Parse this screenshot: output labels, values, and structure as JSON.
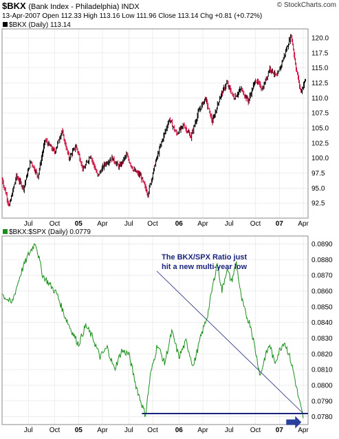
{
  "header": {
    "symbol": "$BKX",
    "description": "(Bank Index - Philadelphia)  INDX",
    "brand": "© StockCharts.com",
    "quote": "13-Apr-2007    Open 112.33  High 113.16  Low 111.96  Close 113.14  Chg +0.81 (+0.72%)"
  },
  "legends": {
    "price": "$BKX (Daily) 113.14",
    "ratio": "$BKX:$SPX (Daily) 0.0779"
  },
  "annotation": {
    "line1": "The BKX/SPX Ratio just",
    "line2": "hit a new multi-year low"
  },
  "colors": {
    "price_up": "#000000",
    "price_down": "#cc0033",
    "ratio_line": "#1a8f1a",
    "annotation": "#1a237e",
    "arrow": "#2a3f9e",
    "grid": "#c8c8c8"
  },
  "chart_data": [
    {
      "type": "line",
      "title": "$BKX (Daily) 113.14",
      "ylim": [
        90,
        121.5
      ],
      "yticks": [
        92.5,
        95.0,
        97.5,
        100.0,
        102.5,
        105.0,
        107.5,
        110.0,
        112.5,
        115.0,
        117.5,
        120.0
      ],
      "xticks": [
        "Jul",
        "Oct",
        "05",
        "Apr",
        "Jul",
        "Oct",
        "06",
        "Apr",
        "Jul",
        "Oct",
        "07",
        "Apr"
      ],
      "grid": true,
      "series": [
        {
          "values": [
            [
              0,
              96.5
            ],
            [
              3,
              92.0
            ],
            [
              6,
              97.0
            ],
            [
              9,
              95.0
            ],
            [
              12,
              99.5
            ],
            [
              15,
              97.0
            ],
            [
              18,
              103.0
            ],
            [
              22,
              101.0
            ],
            [
              25,
              104.5
            ],
            [
              28,
              100.0
            ],
            [
              31,
              102.0
            ],
            [
              34,
              98.0
            ],
            [
              37,
              100.5
            ],
            [
              40,
              97.0
            ],
            [
              43,
              99.0
            ],
            [
              46,
              100.0
            ],
            [
              49,
              98.5
            ],
            [
              52,
              100.5
            ],
            [
              55,
              98.0
            ],
            [
              58,
              97.0
            ],
            [
              61,
              94.0
            ],
            [
              64,
              99.0
            ],
            [
              67,
              103.0
            ],
            [
              70,
              106.5
            ],
            [
              73,
              104.0
            ],
            [
              76,
              105.5
            ],
            [
              79,
              103.5
            ],
            [
              82,
              107.5
            ],
            [
              85,
              110.0
            ],
            [
              88,
              106.0
            ],
            [
              91,
              110.0
            ],
            [
              94,
              112.5
            ],
            [
              97,
              110.0
            ],
            [
              100,
              111.5
            ],
            [
              103,
              109.5
            ],
            [
              106,
              113.0
            ],
            [
              109,
              111.5
            ],
            [
              112,
              115.0
            ],
            [
              115,
              113.5
            ],
            [
              118,
              117.0
            ],
            [
              121,
              120.5
            ],
            [
              123,
              115.0
            ],
            [
              125,
              111.0
            ],
            [
              127,
              113.14
            ]
          ]
        }
      ]
    },
    {
      "type": "line",
      "title": "$BKX:$SPX (Daily) 0.0779",
      "ylim": [
        0.0775,
        0.0895
      ],
      "yticks": [
        0.078,
        0.079,
        0.08,
        0.081,
        0.082,
        0.083,
        0.084,
        0.085,
        0.086,
        0.087,
        0.088,
        0.089
      ],
      "xticks": [
        "Jul",
        "Oct",
        "05",
        "Apr",
        "Jul",
        "Oct",
        "06",
        "Apr",
        "Jul",
        "Oct",
        "07",
        "Apr"
      ],
      "grid": true,
      "series": [
        {
          "values": [
            [
              0,
              0.0858
            ],
            [
              4,
              0.0852
            ],
            [
              8,
              0.0872
            ],
            [
              11,
              0.0883
            ],
            [
              14,
              0.0891
            ],
            [
              17,
              0.087
            ],
            [
              20,
              0.0864
            ],
            [
              23,
              0.0858
            ],
            [
              26,
              0.0845
            ],
            [
              29,
              0.0835
            ],
            [
              32,
              0.0826
            ],
            [
              35,
              0.0838
            ],
            [
              38,
              0.083
            ],
            [
              41,
              0.0818
            ],
            [
              44,
              0.0824
            ],
            [
              47,
              0.081
            ],
            [
              50,
              0.0822
            ],
            [
              53,
              0.082
            ],
            [
              56,
              0.08
            ],
            [
              58,
              0.079
            ],
            [
              60,
              0.0781
            ],
            [
              62,
              0.0806
            ],
            [
              65,
              0.0826
            ],
            [
              68,
              0.0814
            ],
            [
              71,
              0.0834
            ],
            [
              74,
              0.0818
            ],
            [
              77,
              0.0828
            ],
            [
              80,
              0.0812
            ],
            [
              83,
              0.083
            ],
            [
              86,
              0.0845
            ],
            [
              88,
              0.0862
            ],
            [
              90,
              0.0878
            ],
            [
              92,
              0.086
            ],
            [
              94,
              0.0874
            ],
            [
              96,
              0.0866
            ],
            [
              98,
              0.0878
            ],
            [
              100,
              0.0856
            ],
            [
              102,
              0.0845
            ],
            [
              104,
              0.0838
            ],
            [
              106,
              0.0822
            ],
            [
              108,
              0.0806
            ],
            [
              110,
              0.0818
            ],
            [
              112,
              0.0826
            ],
            [
              114,
              0.0814
            ],
            [
              116,
              0.0822
            ],
            [
              118,
              0.0828
            ],
            [
              120,
              0.082
            ],
            [
              122,
              0.0808
            ],
            [
              124,
              0.0792
            ],
            [
              126,
              0.0779
            ]
          ]
        }
      ],
      "reference_line": 0.0782
    }
  ]
}
